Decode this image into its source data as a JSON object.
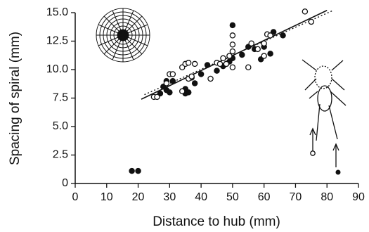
{
  "chart_data": {
    "type": "scatter",
    "xlabel": "Distance to hub (mm)",
    "ylabel": "Spacing of spiral (mm)",
    "xlim": [
      0,
      90
    ],
    "xticks": [
      0,
      10,
      20,
      30,
      40,
      50,
      60,
      70,
      80,
      90
    ],
    "ylim": [
      0,
      15
    ],
    "yticks": [
      0,
      2.5,
      {
        "value": 5,
        "label": "5.0"
      },
      7.5,
      {
        "value": 10,
        "label": "10.0"
      },
      12.5,
      {
        "value": 15,
        "label": "15.0"
      }
    ],
    "series": [
      {
        "marker": "filled",
        "color": "#111111",
        "x": [
          18,
          20,
          27,
          28,
          29,
          29,
          30,
          31,
          35,
          35,
          36,
          37,
          38,
          40,
          42,
          45,
          47,
          48,
          49,
          50,
          50,
          53,
          55,
          57,
          59,
          60,
          62,
          63,
          66
        ],
        "values": [
          1.1,
          1.1,
          7.9,
          8.5,
          8.2,
          9.0,
          8.0,
          9.0,
          8.3,
          7.9,
          8.0,
          9.3,
          8.8,
          9.6,
          10.4,
          9.9,
          10.3,
          10.5,
          10.7,
          13.9,
          11.0,
          11.3,
          12.0,
          11.8,
          10.9,
          12.0,
          11.4,
          13.3,
          13.0
        ]
      },
      {
        "marker": "open",
        "color": "#111111",
        "x": [
          25,
          26,
          29,
          30,
          31,
          34,
          35,
          36,
          36,
          37,
          38,
          34,
          43,
          45,
          46,
          47,
          48,
          49,
          50,
          50,
          50,
          50,
          55,
          56,
          58,
          60,
          61,
          62,
          60,
          73,
          75
        ],
        "values": [
          7.6,
          7.6,
          8.8,
          9.6,
          9.6,
          10.2,
          10.5,
          10.6,
          9.2,
          9.4,
          10.5,
          8.1,
          9.2,
          10.6,
          10.5,
          11.0,
          10.5,
          11.2,
          10.2,
          11.6,
          12.2,
          13.0,
          10.2,
          12.3,
          11.8,
          12.3,
          13.1,
          13.0,
          11.2,
          15.1,
          14.2
        ]
      }
    ],
    "lines": [
      {
        "style": "solid",
        "color": "#111111",
        "x": [
          21,
          80
        ],
        "values": [
          7.4,
          15.2
        ]
      },
      {
        "style": "dotted",
        "color": "#111111",
        "x": [
          22,
          82
        ],
        "values": [
          7.8,
          15.2
        ]
      }
    ]
  }
}
